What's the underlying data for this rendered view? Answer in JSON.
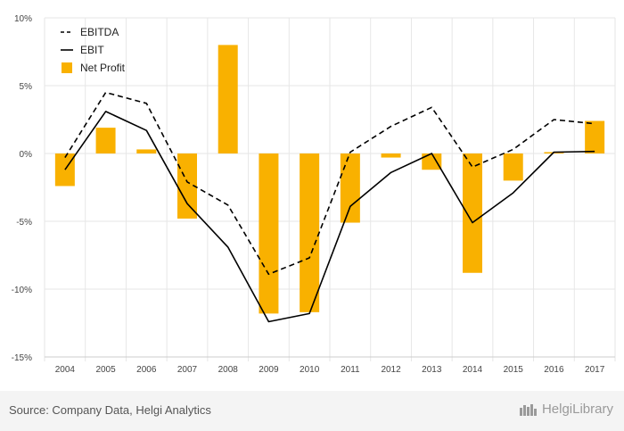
{
  "chart_data": {
    "type": "bar+line",
    "categories": [
      "2004",
      "2005",
      "2006",
      "2007",
      "2008",
      "2009",
      "2010",
      "2011",
      "2012",
      "2013",
      "2014",
      "2015",
      "2016",
      "2017"
    ],
    "series": [
      {
        "name": "EBITDA",
        "kind": "line",
        "style": "dashed",
        "color": "#000000",
        "values": [
          -0.3,
          4.5,
          3.7,
          -2.1,
          -3.8,
          -8.9,
          -7.7,
          0.1,
          2.0,
          3.4,
          -1.0,
          0.3,
          2.5,
          2.2
        ]
      },
      {
        "name": "EBIT",
        "kind": "line",
        "style": "solid",
        "color": "#000000",
        "values": [
          -1.2,
          3.1,
          1.7,
          -3.7,
          -6.9,
          -12.4,
          -11.8,
          -3.9,
          -1.4,
          0.0,
          -5.1,
          -2.9,
          0.1,
          0.15
        ]
      },
      {
        "name": "Net Profit",
        "kind": "bar",
        "color": "#f9b100",
        "values": [
          -2.4,
          1.9,
          0.3,
          -4.8,
          8.0,
          -11.8,
          -11.7,
          -5.1,
          -0.3,
          -1.2,
          -8.8,
          -2.0,
          0.1,
          2.4
        ]
      }
    ],
    "yticks": [
      10,
      5,
      0,
      -5,
      -10,
      -15
    ],
    "ytick_labels": [
      "10%",
      "5%",
      "0%",
      "-5%",
      "-10%",
      "-15%"
    ],
    "ylim": [
      -15,
      10
    ],
    "grid": true,
    "legend_position": "top-left"
  },
  "footer": {
    "source": "Source: Company Data, Helgi Analytics",
    "brand": "HelgiLibrary"
  }
}
